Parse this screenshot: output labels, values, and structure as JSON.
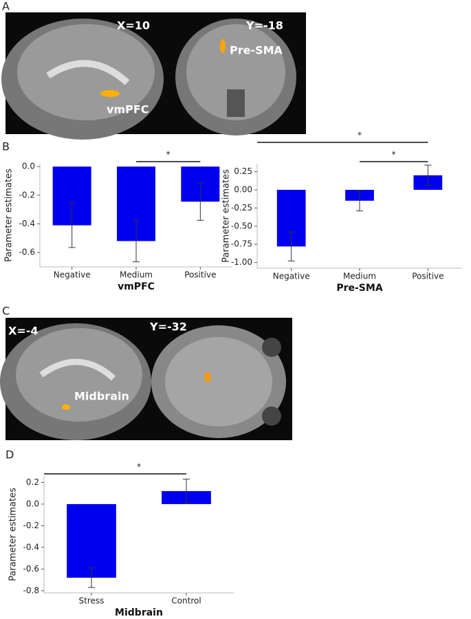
{
  "panel_labels": [
    "A",
    "B",
    "C",
    "D"
  ],
  "images": [
    {
      "label": "X=10",
      "annotation": "vmPFC"
    },
    {
      "label": "Y=-18",
      "annotation": "Pre-SMA"
    },
    {
      "label": "X=-4",
      "annotation": "Midbrain"
    },
    {
      "label": "Y=-32"
    }
  ],
  "chart_data": [
    {
      "type": "bar",
      "ylabel": "Parameter estimates",
      "xlabel": "vmPFC",
      "color": "#0000ee",
      "categories": [
        "Negative",
        "Medium",
        "Positive"
      ],
      "values": [
        -0.41,
        -0.52,
        -0.245
      ],
      "errors": [
        0.155,
        0.145,
        0.13
      ],
      "ylim": [
        -0.7,
        0.02
      ],
      "yticks": [
        {
          "value": 0,
          "label": "0.0"
        },
        -0.2,
        -0.4,
        -0.6
      ],
      "significance": [
        {
          "from": 1,
          "to": 2,
          "label": "*"
        }
      ]
    },
    {
      "type": "bar",
      "ylabel": "Parameter estimates",
      "xlabel": "Pre-SMA",
      "color": "#0000ee",
      "categories": [
        "Negative",
        "Medium",
        "Positive"
      ],
      "values": [
        -0.78,
        -0.15,
        0.2
      ],
      "errors": [
        0.2,
        0.14,
        0.14
      ],
      "ylim": [
        -1.08,
        0.36
      ],
      "yticks": [
        {
          "value": 0.25,
          "label": "0.25"
        },
        {
          "value": 0,
          "label": "0.00"
        },
        {
          "value": -0.25,
          "label": "-0.25"
        },
        {
          "value": -0.5,
          "label": "-0.50"
        },
        {
          "value": -0.75,
          "label": "-0.75"
        },
        {
          "value": -1,
          "label": "-1.00"
        }
      ],
      "significance": [
        {
          "from": 1,
          "to": 2,
          "label": "*"
        },
        {
          "from": 0,
          "to": 2,
          "label": "*"
        }
      ]
    },
    {
      "type": "bar",
      "ylabel": "Parameter estimates",
      "xlabel": "Midbrain",
      "color": "#0000ee",
      "categories": [
        "Stress",
        "Control"
      ],
      "values": [
        -0.68,
        0.12
      ],
      "errors": [
        0.09,
        0.11
      ],
      "ylim": [
        -0.82,
        0.26
      ],
      "yticks": [
        0.2,
        {
          "value": 0,
          "label": "0.0"
        },
        -0.2,
        -0.4,
        -0.6,
        -0.8
      ],
      "significance": [
        {
          "from": 0,
          "to": 1,
          "label": "*"
        }
      ]
    }
  ]
}
